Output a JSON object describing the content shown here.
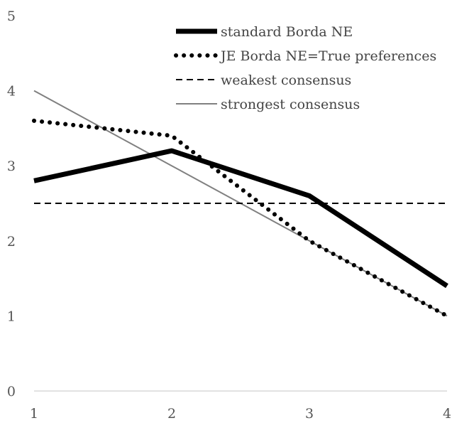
{
  "chart_data": {
    "type": "line",
    "title": "",
    "xlabel": "",
    "ylabel": "",
    "x": [
      1,
      2,
      3,
      4
    ],
    "xlim": [
      1,
      4
    ],
    "ylim": [
      0,
      5
    ],
    "x_ticks": [
      "1",
      "2",
      "3",
      "4"
    ],
    "y_ticks": [
      "0",
      "1",
      "2",
      "3",
      "4",
      "5"
    ],
    "grid": false,
    "legend_position": "top-right",
    "series": [
      {
        "name": "standard Borda NE",
        "values": [
          2.8,
          3.2,
          2.6,
          1.4
        ],
        "color": "#000000",
        "style": "solid-thick"
      },
      {
        "name": "JE Borda NE=True preferences",
        "values": [
          3.6,
          3.4,
          2.0,
          1.0
        ],
        "color": "#000000",
        "style": "dotted"
      },
      {
        "name": "weakest consensus",
        "values": [
          2.5,
          2.5,
          2.5,
          2.5
        ],
        "color": "#000000",
        "style": "dashed"
      },
      {
        "name": "strongest consensus",
        "values": [
          4.0,
          3.0,
          2.0,
          1.0
        ],
        "color": "#808080",
        "style": "solid-thin"
      }
    ]
  }
}
